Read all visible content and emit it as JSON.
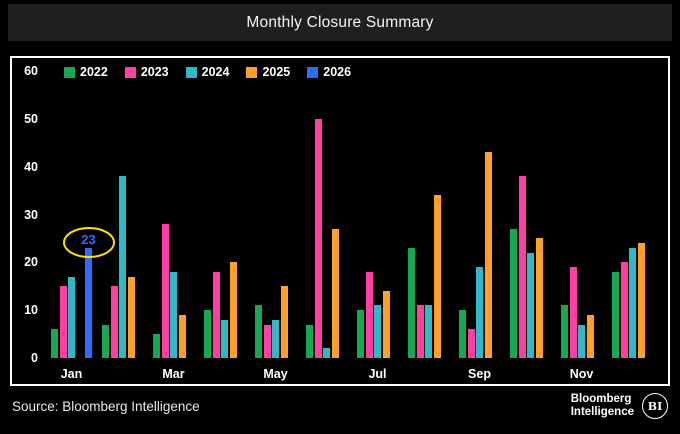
{
  "title": "Monthly Closure Summary",
  "source": "Source: Bloomberg Intelligence",
  "logo": {
    "line1": "Bloomberg",
    "line2": "Intelligence",
    "badge": "BI"
  },
  "colors": {
    "background": "#000000",
    "titlebar": "#1f1f1f",
    "frame_border": "#ffffff",
    "axis_text": "#ffffff",
    "annotation_ellipse": "#ffe100"
  },
  "chart_data": {
    "type": "bar",
    "title": "Monthly Closure Summary",
    "categories": [
      "Jan",
      "Feb",
      "Mar",
      "Apr",
      "May",
      "Jun",
      "Jul",
      "Aug",
      "Sep",
      "Oct",
      "Nov",
      "Dec"
    ],
    "x_tick_labels_shown": [
      "Jan",
      "Mar",
      "May",
      "Jul",
      "Sep",
      "Nov"
    ],
    "xlabel": "",
    "ylabel": "",
    "ylim": [
      0,
      60
    ],
    "yticks": [
      0,
      10,
      20,
      30,
      40,
      50,
      60
    ],
    "grid": false,
    "legend_position": "top-left",
    "series": [
      {
        "name": "2022",
        "color": "#17a853",
        "values": [
          6,
          7,
          5,
          10,
          11,
          7,
          10,
          23,
          10,
          27,
          11,
          18
        ]
      },
      {
        "name": "2023",
        "color": "#ff3fa4",
        "values": [
          15,
          15,
          28,
          18,
          7,
          50,
          18,
          11,
          6,
          38,
          19,
          20
        ]
      },
      {
        "name": "2024",
        "color": "#2fb8c5",
        "values": [
          17,
          38,
          18,
          8,
          8,
          2,
          11,
          11,
          19,
          22,
          7,
          23
        ]
      },
      {
        "name": "2025",
        "color": "#ffa128",
        "values": [
          null,
          17,
          9,
          20,
          15,
          27,
          14,
          34,
          43,
          25,
          9,
          24
        ]
      },
      {
        "name": "2026",
        "color": "#2e6bff",
        "values": [
          23,
          null,
          null,
          null,
          null,
          null,
          null,
          null,
          null,
          null,
          null,
          null
        ]
      }
    ],
    "annotation": {
      "series": "2026",
      "category": "Jan",
      "label": "23",
      "label_color": "#2e6bff",
      "ellipse_color": "#ffe100"
    }
  }
}
